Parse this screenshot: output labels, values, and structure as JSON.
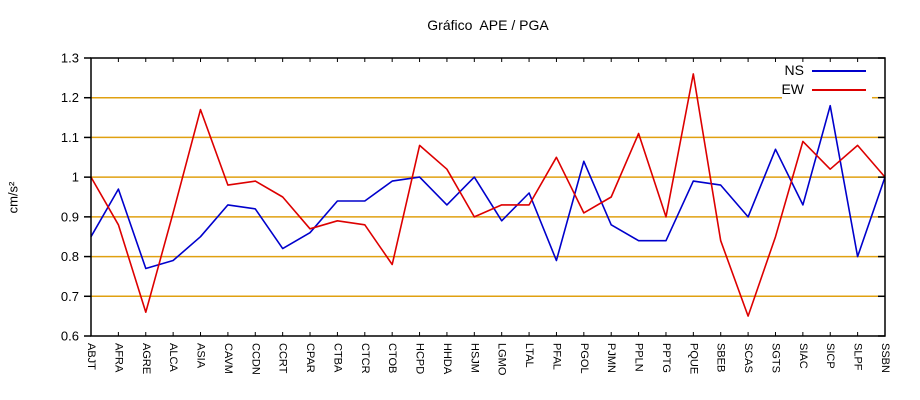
{
  "chart_data": {
    "type": "line",
    "title": "Gráfico  APE / PGA",
    "ylabel": "cm/s²",
    "xlabel": "",
    "ylim": [
      0.6,
      1.3
    ],
    "yticks": [
      0.6,
      0.7,
      0.8,
      0.9,
      1.0,
      1.1,
      1.2,
      1.3
    ],
    "ytick_labels": [
      "0.6",
      "0.7",
      "0.8",
      "0.9",
      "1",
      "1.1",
      "1.2",
      "1.3"
    ],
    "grid": true,
    "grid_color": "#e0a010",
    "axis_color": "#000000",
    "legend_position": "top-right-inside",
    "categories": [
      "ABJT",
      "AFRA",
      "AGRE",
      "ALCA",
      "ASIA",
      "CAVM",
      "CCDN",
      "CCRT",
      "CPAR",
      "CTBA",
      "CTCR",
      "CTOB",
      "HCPD",
      "HHDA",
      "HSJM",
      "LGMO",
      "LTAL",
      "PFAL",
      "PGOL",
      "PJMN",
      "PPLN",
      "PPTG",
      "PQUE",
      "SBEB",
      "SCAS",
      "SGTS",
      "SIAC",
      "SICP",
      "SLPF",
      "SSBN"
    ],
    "series": [
      {
        "name": "NS",
        "color": "#0000cc",
        "values": [
          0.85,
          0.97,
          0.77,
          0.79,
          0.85,
          0.93,
          0.92,
          0.82,
          0.86,
          0.94,
          0.94,
          0.99,
          1.0,
          0.93,
          1.0,
          0.89,
          0.96,
          0.79,
          1.04,
          0.88,
          0.84,
          0.84,
          0.99,
          0.98,
          0.9,
          1.07,
          0.93,
          1.18,
          0.8,
          1.0
        ]
      },
      {
        "name": "EW",
        "color": "#dd0000",
        "values": [
          1.0,
          0.88,
          0.66,
          0.91,
          1.17,
          0.98,
          0.99,
          0.95,
          0.87,
          0.89,
          0.88,
          0.78,
          1.08,
          1.02,
          0.9,
          0.93,
          0.93,
          1.05,
          0.91,
          0.95,
          1.11,
          0.9,
          1.26,
          0.84,
          0.65,
          0.85,
          1.09,
          1.02,
          1.08,
          1.0
        ]
      }
    ]
  }
}
